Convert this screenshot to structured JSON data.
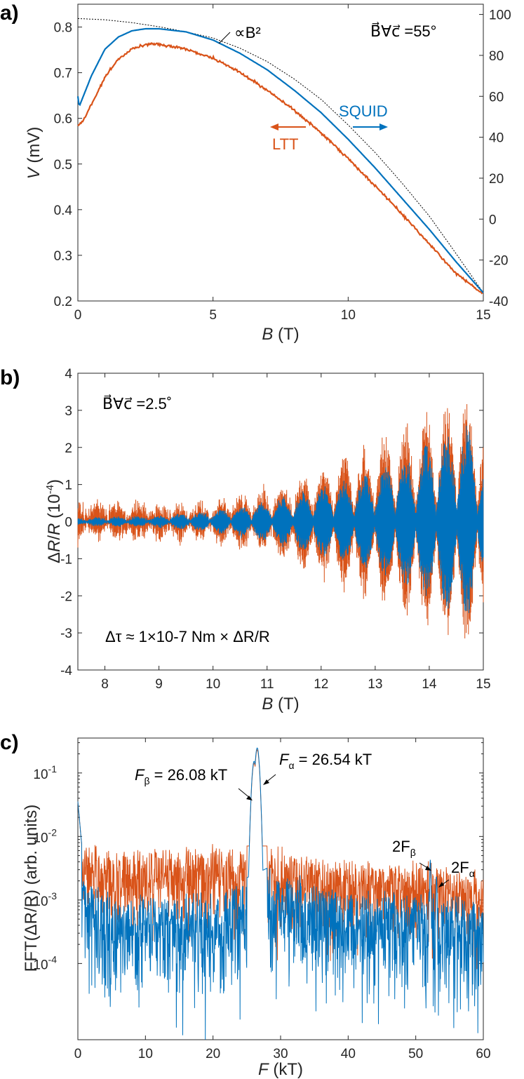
{
  "colors": {
    "ltt": "#d95319",
    "squid": "#0072bd",
    "fit": "#000000",
    "axis": "#262626"
  },
  "chart_data": [
    {
      "panel": "a)",
      "type": "line",
      "xlabel_var": "B",
      "xlabel_unit": "(T)",
      "ylabel_var": "V",
      "ylabel_unit": "(mV)",
      "xlim": [
        0,
        15
      ],
      "ylim": [
        0.2,
        0.85
      ],
      "y2lim": [
        -40,
        105
      ],
      "xticks": [
        "0",
        "5",
        "10",
        "15"
      ],
      "xtick_values": [
        0,
        5,
        10,
        15
      ],
      "yticks": [
        "0.2",
        "0.3",
        "0.4",
        "0.5",
        "0.6",
        "0.7",
        "0.8"
      ],
      "ytick_values": [
        0.2,
        0.3,
        0.4,
        0.5,
        0.6,
        0.7,
        0.8
      ],
      "y2ticks": [
        "-40",
        "-20",
        "0",
        "20",
        "40",
        "60",
        "80",
        "100"
      ],
      "y2tick_values": [
        -40,
        -20,
        0,
        20,
        40,
        60,
        80,
        100
      ],
      "angle_label": "B⃗∀c⃗ =55°",
      "fit_label": "∝B²",
      "series": [
        {
          "name": "LTT",
          "axis": "left",
          "x": [
            0,
            0.2,
            0.5,
            1,
            1.5,
            2,
            2.5,
            3,
            4,
            5,
            6,
            7,
            8,
            9,
            10,
            11,
            12,
            13,
            14,
            15
          ],
          "y": [
            0.585,
            0.595,
            0.63,
            0.69,
            0.73,
            0.752,
            0.762,
            0.762,
            0.752,
            0.732,
            0.7,
            0.662,
            0.618,
            0.568,
            0.512,
            0.452,
            0.39,
            0.325,
            0.26,
            0.215
          ]
        },
        {
          "name": "SQUID",
          "axis": "right",
          "x": [
            0,
            0.05,
            0.2,
            0.5,
            1,
            1.5,
            2,
            2.5,
            3,
            4,
            5,
            6,
            7,
            8,
            9,
            10,
            11,
            12,
            13,
            14,
            15
          ],
          "y": [
            60,
            55,
            60,
            70,
            83,
            89,
            92,
            93,
            93,
            91.5,
            87.5,
            81,
            73,
            63,
            52,
            39,
            25,
            10,
            -5,
            -21,
            -36
          ]
        },
        {
          "name": "∝B² fit",
          "axis": "right",
          "x": [
            0,
            1,
            2,
            3,
            4,
            5,
            6,
            7,
            8,
            9,
            10,
            11,
            12,
            13,
            14,
            15
          ],
          "y": [
            98,
            97.4,
            96,
            94,
            91.5,
            88.5,
            83.5,
            77,
            68.5,
            58.5,
            46,
            32.5,
            17.5,
            1.5,
            -17,
            -36
          ]
        }
      ],
      "legend": [
        {
          "label": "LTT",
          "direction": "left"
        },
        {
          "label": "SQUID",
          "direction": "right"
        }
      ]
    },
    {
      "panel": "b)",
      "type": "line",
      "xlabel_var": "B",
      "xlabel_unit": "(T)",
      "ylabel_prefix": "Δ",
      "ylabel_var1": "R",
      "ylabel_slash": "/",
      "ylabel_var2": "R",
      "ylabel_unit": "(10",
      "ylabel_exp": "-4",
      "ylabel_close": ")",
      "xlim": [
        7.5,
        15
      ],
      "ylim": [
        -4,
        4
      ],
      "xticks": [
        "8",
        "9",
        "10",
        "11",
        "12",
        "13",
        "14",
        "15"
      ],
      "xtick_values": [
        8,
        9,
        10,
        11,
        12,
        13,
        14,
        15
      ],
      "yticks": [
        "-4",
        "-3",
        "-2",
        "-1",
        "0",
        "1",
        "2",
        "3",
        "4"
      ],
      "ytick_values": [
        -4,
        -3,
        -2,
        -1,
        0,
        1,
        2,
        3,
        4
      ],
      "angle_label": "B⃗∀c⃗ =2.5˚",
      "torque_note": "Δτ ≈ 1×10-7 Nm × ΔR/R",
      "envelope_B": [
        7.5,
        9,
        10,
        11,
        12,
        13,
        14,
        14.7,
        15
      ],
      "envelope_ltt": [
        0.45,
        0.4,
        0.5,
        0.8,
        1.5,
        2.2,
        2.9,
        3.35,
        2.8
      ],
      "envelope_squid": [
        0.1,
        0.15,
        0.3,
        0.55,
        0.95,
        1.4,
        2.1,
        2.7,
        1.6
      ],
      "beat_period_T": 0.38,
      "series": [
        {
          "name": "LTT"
        },
        {
          "name": "SQUID"
        }
      ]
    },
    {
      "panel": "c)",
      "type": "line",
      "xlabel_var": "F",
      "xlabel_unit": "(kT)",
      "ylabel": "FFT(ΔR/R) (arb. units)",
      "xlim": [
        0,
        60
      ],
      "ylim_log10": [
        -5.2,
        -0.45
      ],
      "xticks": [
        "0",
        "10",
        "20",
        "30",
        "40",
        "50",
        "60"
      ],
      "xtick_values": [
        0,
        10,
        20,
        30,
        40,
        50,
        60
      ],
      "yticks": [
        {
          "base": "10",
          "exp": "-4",
          "log": -4
        },
        {
          "base": "10",
          "exp": "-3",
          "log": -3
        },
        {
          "base": "10",
          "exp": "-2",
          "log": -2
        },
        {
          "base": "10",
          "exp": "-1",
          "log": -1
        }
      ],
      "peaks": [
        {
          "name": "F_beta",
          "F_kT": 26.08,
          "amplitude": 0.16,
          "label_main": "F",
          "label_sub": "β",
          "label_value": " = 26.08 kT"
        },
        {
          "name": "F_alpha",
          "F_kT": 26.54,
          "amplitude": 0.26,
          "label_main": "F",
          "label_sub": "α",
          "label_value": " = 26.54 kT"
        },
        {
          "name": "2F_beta",
          "F_kT": 52.16,
          "amplitude": 0.0045,
          "label_main": "2F",
          "label_sub": "β"
        },
        {
          "name": "2F_alpha",
          "F_kT": 53.08,
          "amplitude": 0.0025,
          "label_main": "2F",
          "label_sub": "α"
        }
      ],
      "series": [
        {
          "name": "LTT",
          "baseline_F": [
            0,
            5,
            10,
            20,
            24,
            28,
            40,
            50,
            60
          ],
          "baseline_log": [
            -2.3,
            -2.35,
            -2.4,
            -2.35,
            -2.35,
            -2.35,
            -2.55,
            -2.6,
            -2.75
          ]
        },
        {
          "name": "SQUID",
          "baseline_F": [
            0,
            5,
            10,
            20,
            24,
            28,
            40,
            50,
            60
          ],
          "baseline_log": [
            -2.8,
            -3.05,
            -3.1,
            -3.0,
            -2.9,
            -2.7,
            -3.05,
            -3.05,
            -3.2
          ]
        }
      ]
    }
  ]
}
